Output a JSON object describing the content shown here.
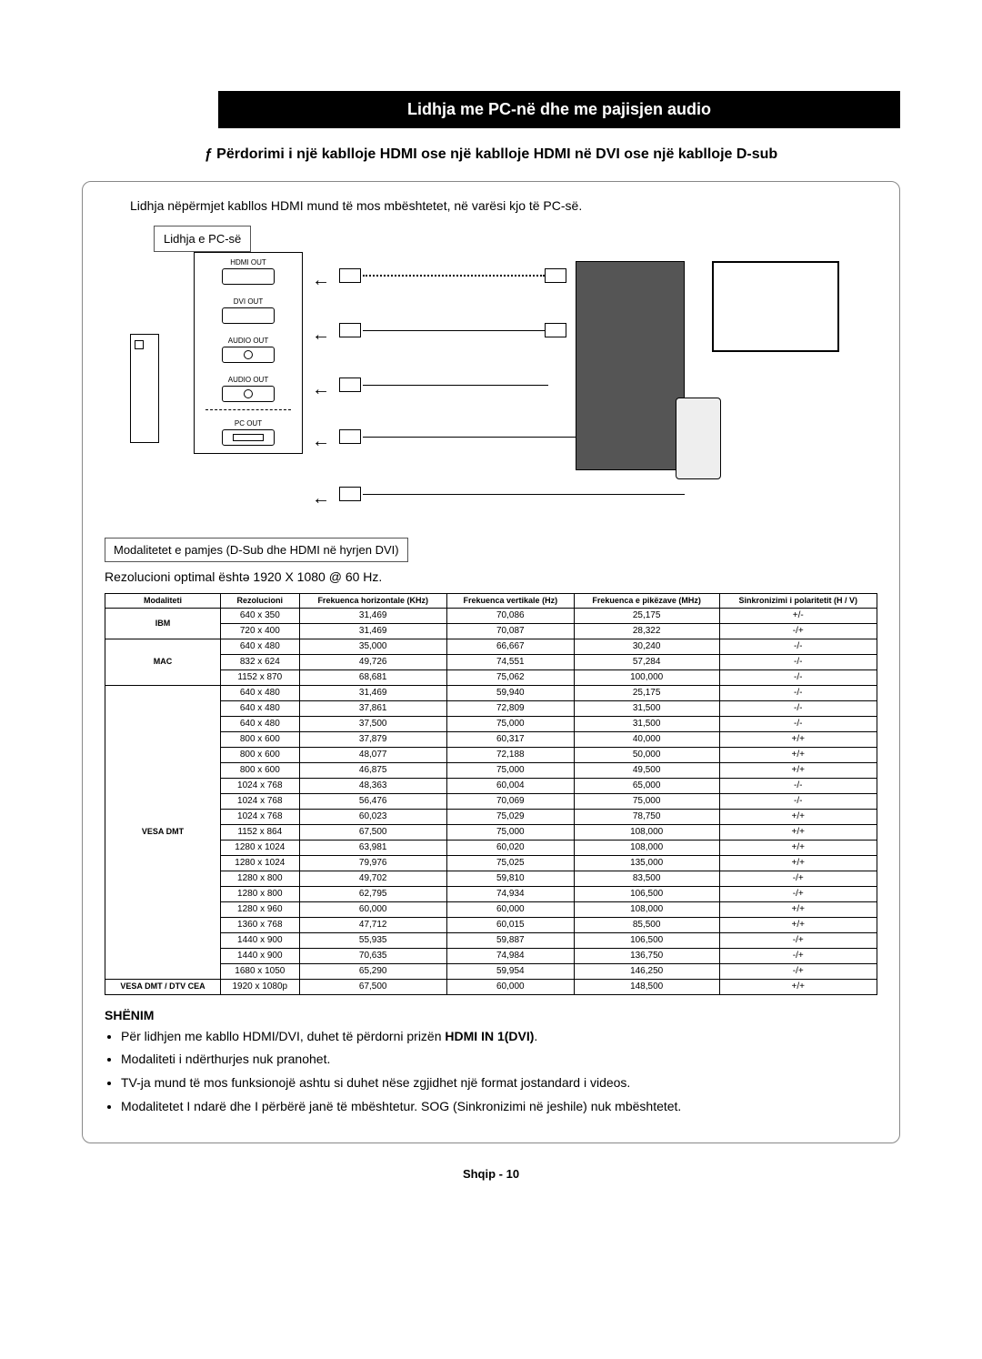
{
  "header": "Lidhja me PC-në dhe me pajisjen audio",
  "subtitle": "ƒ   Përdorimi i një kablloje HDMI ose një kablloje HDMI në DVI ose një kablloje D-sub",
  "intro": "Lidhja nëpërmjet kabllos HDMI mund të mos mbështetet, në varësi kjo të PC-së.",
  "diagram": {
    "pc_label": "Lidhja e PC-së",
    "ports": [
      "HDMI OUT",
      "DVI OUT",
      "AUDIO OUT",
      "AUDIO OUT",
      "---",
      "PC OUT"
    ]
  },
  "modes_label": "Modalitetet e pamjes (D-Sub dhe HDMI në hyrjen DVI)",
  "optimal_res": "Rezolucioni optimal ështə 1920 X 1080 @ 60 Hz.",
  "table": {
    "headers": [
      "Modaliteti",
      "Rezolucioni",
      "Frekuenca horizontale (KHz)",
      "Frekuenca vertikale (Hz)",
      "Frekuenca e pikëzave (MHz)",
      "Sinkronizimi i polaritetit (H / V)"
    ],
    "groups": [
      {
        "mode": "IBM",
        "rows": [
          [
            "640 x 350",
            "31,469",
            "70,086",
            "25,175",
            "+/-"
          ],
          [
            "720 x 400",
            "31,469",
            "70,087",
            "28,322",
            "-/+"
          ]
        ]
      },
      {
        "mode": "MAC",
        "rows": [
          [
            "640 x 480",
            "35,000",
            "66,667",
            "30,240",
            "-/-"
          ],
          [
            "832 x 624",
            "49,726",
            "74,551",
            "57,284",
            "-/-"
          ],
          [
            "1152 x 870",
            "68,681",
            "75,062",
            "100,000",
            "-/-"
          ]
        ]
      },
      {
        "mode": "VESA DMT",
        "rows": [
          [
            "640 x 480",
            "31,469",
            "59,940",
            "25,175",
            "-/-"
          ],
          [
            "640 x 480",
            "37,861",
            "72,809",
            "31,500",
            "-/-"
          ],
          [
            "640 x 480",
            "37,500",
            "75,000",
            "31,500",
            "-/-"
          ],
          [
            "800 x 600",
            "37,879",
            "60,317",
            "40,000",
            "+/+"
          ],
          [
            "800 x 600",
            "48,077",
            "72,188",
            "50,000",
            "+/+"
          ],
          [
            "800 x 600",
            "46,875",
            "75,000",
            "49,500",
            "+/+"
          ],
          [
            "1024 x 768",
            "48,363",
            "60,004",
            "65,000",
            "-/-"
          ],
          [
            "1024 x 768",
            "56,476",
            "70,069",
            "75,000",
            "-/-"
          ],
          [
            "1024 x 768",
            "60,023",
            "75,029",
            "78,750",
            "+/+"
          ],
          [
            "1152 x 864",
            "67,500",
            "75,000",
            "108,000",
            "+/+"
          ],
          [
            "1280 x 1024",
            "63,981",
            "60,020",
            "108,000",
            "+/+"
          ],
          [
            "1280 x 1024",
            "79,976",
            "75,025",
            "135,000",
            "+/+"
          ],
          [
            "1280 x 800",
            "49,702",
            "59,810",
            "83,500",
            "-/+"
          ],
          [
            "1280 x 800",
            "62,795",
            "74,934",
            "106,500",
            "-/+"
          ],
          [
            "1280 x 960",
            "60,000",
            "60,000",
            "108,000",
            "+/+"
          ],
          [
            "1360 x 768",
            "47,712",
            "60,015",
            "85,500",
            "+/+"
          ],
          [
            "1440 x 900",
            "55,935",
            "59,887",
            "106,500",
            "-/+"
          ],
          [
            "1440 x 900",
            "70,635",
            "74,984",
            "136,750",
            "-/+"
          ],
          [
            "1680 x 1050",
            "65,290",
            "59,954",
            "146,250",
            "-/+"
          ]
        ]
      },
      {
        "mode": "VESA DMT / DTV CEA",
        "rows": [
          [
            "1920 x 1080p",
            "67,500",
            "60,000",
            "148,500",
            "+/+"
          ]
        ]
      }
    ]
  },
  "note_title": "SHËNIM",
  "notes": [
    "Për lidhjen me kabllo HDMI/DVI, duhet të përdorni prizën <b>HDMI IN 1(DVI)</b>.",
    "Modaliteti i ndërthurjes nuk pranohet.",
    "TV-ja mund të mos funksionojë ashtu si  duhet nëse zgjidhet një format jostandard i videos.",
    "Modalitetet I ndarë dhe I përbërë janë të mbështetur. SOG (Sinkronizimi në jeshile) nuk mbështetet."
  ],
  "footer": "Shqip - 10"
}
